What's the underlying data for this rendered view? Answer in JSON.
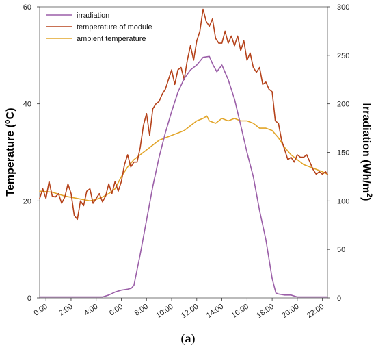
{
  "chart_data": {
    "type": "line",
    "caption": "(a)",
    "ylabel_left": "Temperature (ºC)",
    "ylabel_right": "Irradiation (Wh/m2)",
    "ylabel_left_parts": [
      "Temperature (",
      "o",
      "C)"
    ],
    "ylabel_right_parts": [
      "Irradiation (Wh/m",
      "2",
      ")"
    ],
    "ylim_left": [
      0,
      60
    ],
    "ylim_right": [
      0,
      300
    ],
    "xlim_hours": [
      -0.5,
      22.4
    ],
    "y_ticks_left": [
      0,
      20,
      40,
      60
    ],
    "y_ticks_right": [
      0,
      50,
      100,
      150,
      200,
      250,
      300
    ],
    "x_tick_labels": [
      "0:00",
      "2:00",
      "4:00",
      "6:00",
      "8:00",
      "10:00",
      "12:00",
      "14:00",
      "16:00",
      "18:00",
      "20:00",
      "22:00"
    ],
    "x_tick_hours": [
      0,
      2,
      4,
      6,
      8,
      10,
      12,
      14,
      16,
      18,
      20,
      22
    ],
    "legend_position": "top-left",
    "grid": false,
    "series": [
      {
        "name": "irradiation",
        "color": "#9b5fa8",
        "axis": "right",
        "x": [
          -0.5,
          4.0,
          4.5,
          5.0,
          5.5,
          6.0,
          6.5,
          6.8,
          7.0,
          7.5,
          8.0,
          8.5,
          9.0,
          9.5,
          10.0,
          10.5,
          11.0,
          11.5,
          12.0,
          12.5,
          13.0,
          13.3,
          13.6,
          14.0,
          14.5,
          15.0,
          15.5,
          16.0,
          16.5,
          17.0,
          17.5,
          18.0,
          18.3,
          18.5,
          19.0,
          19.5,
          20.0,
          22.4
        ],
        "y": [
          1,
          1,
          1,
          3,
          6,
          8,
          9,
          10,
          13,
          45,
          80,
          115,
          145,
          170,
          192,
          212,
          226,
          235,
          240,
          248,
          249,
          240,
          233,
          240,
          225,
          205,
          178,
          150,
          125,
          90,
          60,
          20,
          5,
          4,
          3,
          3,
          1,
          1
        ]
      },
      {
        "name": "temperature of module",
        "color": "#b5421a",
        "axis": "left",
        "x": [
          -0.5,
          -0.25,
          0.0,
          0.25,
          0.5,
          0.75,
          1.0,
          1.25,
          1.5,
          1.75,
          2.0,
          2.25,
          2.5,
          2.75,
          3.0,
          3.25,
          3.5,
          3.75,
          4.0,
          4.25,
          4.5,
          4.75,
          5.0,
          5.25,
          5.5,
          5.75,
          6.0,
          6.25,
          6.5,
          6.75,
          7.0,
          7.25,
          7.5,
          7.75,
          8.0,
          8.25,
          8.5,
          8.75,
          9.0,
          9.25,
          9.5,
          9.75,
          10.0,
          10.25,
          10.5,
          10.75,
          11.0,
          11.25,
          11.5,
          11.75,
          12.0,
          12.25,
          12.5,
          12.75,
          13.0,
          13.25,
          13.5,
          13.75,
          14.0,
          14.25,
          14.5,
          14.75,
          15.0,
          15.25,
          15.5,
          15.75,
          16.0,
          16.25,
          16.5,
          16.75,
          17.0,
          17.25,
          17.5,
          17.75,
          18.0,
          18.25,
          18.5,
          18.75,
          19.0,
          19.25,
          19.5,
          19.75,
          20.0,
          20.25,
          20.5,
          20.75,
          21.0,
          21.25,
          21.5,
          21.75,
          22.0,
          22.25,
          22.4
        ],
        "y": [
          20.5,
          22.5,
          20.5,
          24.0,
          21.0,
          20.8,
          21.5,
          19.5,
          20.8,
          23.5,
          21.5,
          17.0,
          16.2,
          20.0,
          19.0,
          22.0,
          22.5,
          19.5,
          20.5,
          21.5,
          19.8,
          21.0,
          23.5,
          21.5,
          24.0,
          22.0,
          24.0,
          27.5,
          29.5,
          27.0,
          28.0,
          28.0,
          31.0,
          35.5,
          38.0,
          33.5,
          39.0,
          40.0,
          40.5,
          42.0,
          43.0,
          45.0,
          47.0,
          44.0,
          47.0,
          47.5,
          45.0,
          49.0,
          52.0,
          49.0,
          53.0,
          55.0,
          59.5,
          57.0,
          56.0,
          57.5,
          53.5,
          52.5,
          52.5,
          55.0,
          52.5,
          54.0,
          52.0,
          54.0,
          51.0,
          53.0,
          49.0,
          50.5,
          47.5,
          46.5,
          47.5,
          44.0,
          44.5,
          43.0,
          42.5,
          36.5,
          36.0,
          32.5,
          30.5,
          28.5,
          29.0,
          28.0,
          29.5,
          29.0,
          29.0,
          29.5,
          28.0,
          26.5,
          25.5,
          26.0,
          25.5,
          26.0,
          25.5
        ]
      },
      {
        "name": "ambient temperature",
        "color": "#e2a529",
        "axis": "left",
        "x": [
          -0.5,
          0.5,
          1.5,
          2.5,
          3.5,
          4.0,
          4.5,
          5.0,
          5.5,
          6.0,
          6.5,
          7.0,
          7.5,
          8.0,
          8.5,
          9.0,
          9.5,
          10.0,
          10.5,
          11.0,
          11.5,
          12.0,
          12.5,
          12.8,
          13.0,
          13.5,
          14.0,
          14.5,
          15.0,
          15.5,
          16.0,
          16.5,
          17.0,
          17.5,
          18.0,
          18.5,
          19.0,
          19.5,
          20.0,
          20.5,
          21.0,
          21.5,
          22.0,
          22.4
        ],
        "y": [
          22.0,
          21.8,
          21.0,
          20.5,
          20.0,
          20.3,
          20.8,
          21.5,
          22.5,
          25.0,
          27.0,
          28.5,
          29.5,
          30.5,
          31.5,
          32.5,
          33.0,
          33.5,
          34.0,
          34.5,
          35.5,
          36.5,
          37.0,
          37.5,
          36.5,
          36.0,
          37.0,
          36.5,
          37.0,
          36.5,
          36.5,
          36.0,
          35.0,
          35.0,
          34.5,
          33.0,
          31.0,
          29.5,
          28.5,
          27.5,
          27.0,
          26.5,
          26.0,
          25.5
        ]
      }
    ]
  }
}
